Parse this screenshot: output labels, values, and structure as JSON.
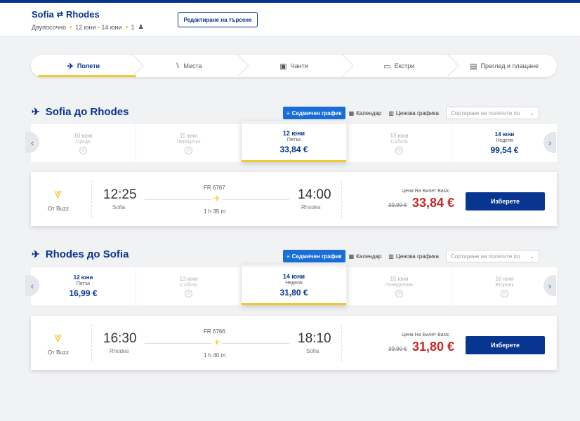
{
  "header": {
    "origin": "Sofia",
    "destination": "Rhodes",
    "trip_type": "Двупосочно",
    "dates": "12 юни - 14 юни",
    "passengers": "1",
    "edit_label": "Редактиране на търсене"
  },
  "stepper": [
    {
      "label": "Полети",
      "icon": "plane-icon",
      "active": true
    },
    {
      "label": "Места",
      "icon": "seat-icon",
      "active": false
    },
    {
      "label": "Чанти",
      "icon": "bag-icon",
      "active": false
    },
    {
      "label": "Екстри",
      "icon": "extras-icon",
      "active": false
    },
    {
      "label": "Преглед и плащане",
      "icon": "card-icon",
      "active": false
    }
  ],
  "view_toggles": {
    "weekly": "Седмичен график",
    "calendar": "Календар",
    "price_chart": "Ценова графика",
    "sort_placeholder": "Сортиране на полетите по"
  },
  "outbound": {
    "title": "Sofia до Rhodes",
    "dates": [
      {
        "date": "10 юни",
        "weekday": "Сряда",
        "price": null
      },
      {
        "date": "11 юни",
        "weekday": "Четвъртък",
        "price": null
      },
      {
        "date": "12 юни",
        "weekday": "Петък",
        "price": "33,84 €",
        "selected": true
      },
      {
        "date": "13 юни",
        "weekday": "Събота",
        "price": null
      },
      {
        "date": "14 юни",
        "weekday": "Неделя",
        "price": "99,54 €"
      }
    ],
    "flight": {
      "operator": "От Buzz",
      "dep_time": "12:25",
      "dep_city": "Sofia",
      "arr_time": "14:00",
      "arr_city": "Rhodes",
      "flight_no": "FR 6767",
      "duration": "1 h 35 m",
      "fare_label": "Цена На Билет Basic",
      "old_price": "39,99 €",
      "price": "33,84 €",
      "select_label": "Изберете"
    }
  },
  "inbound": {
    "title": "Rhodes до Sofia",
    "dates": [
      {
        "date": "12 юни",
        "weekday": "Петък",
        "price": "16,99 €"
      },
      {
        "date": "13 юни",
        "weekday": "Събота",
        "price": null
      },
      {
        "date": "14 юни",
        "weekday": "Неделя",
        "price": "31,80 €",
        "selected": true
      },
      {
        "date": "15 юни",
        "weekday": "Понеделник",
        "price": null
      },
      {
        "date": "16 юни",
        "weekday": "Вторник",
        "price": null
      }
    ],
    "flight": {
      "operator": "От Buzz",
      "dep_time": "16:30",
      "dep_city": "Rhodes",
      "arr_time": "18:10",
      "arr_city": "Sofia",
      "flight_no": "FR 6766",
      "duration": "1 h 40 m",
      "fare_label": "Цена На Билет Basic",
      "old_price": "39,99 €",
      "price": "31,80 €",
      "select_label": "Изберете"
    }
  }
}
